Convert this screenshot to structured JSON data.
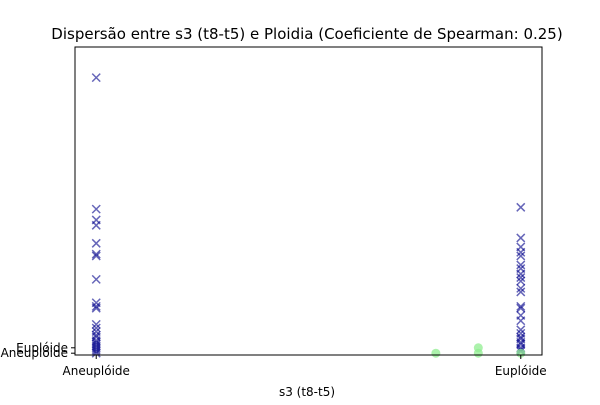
{
  "chart_data": {
    "type": "scatter",
    "title": "Dispersão entre s3 (t8-t5) e Ploidia (Coeficiente de Spearman: 0.25)",
    "xlabel": "s3 (t8-t5)",
    "ylabel": "",
    "x_tick_labels": [
      "Aneuplóide",
      "Euplóide"
    ],
    "y_tick_labels": [
      "Aneuplóide",
      "Euplóide"
    ],
    "xlim": [
      -0.05,
      1.05
    ],
    "ylim": [
      -0.1,
      17.0
    ],
    "grid": false,
    "legend": "none",
    "series": [
      {
        "marker": "x",
        "color": "#00008b",
        "points": [
          {
            "x": 0,
            "y": 15.3
          },
          {
            "x": 0,
            "y": 8.0
          },
          {
            "x": 0,
            "y": 7.4
          },
          {
            "x": 0,
            "y": 7.1
          },
          {
            "x": 0,
            "y": 6.1
          },
          {
            "x": 0,
            "y": 5.5
          },
          {
            "x": 0,
            "y": 5.4
          },
          {
            "x": 0,
            "y": 4.1
          },
          {
            "x": 0,
            "y": 2.8
          },
          {
            "x": 0,
            "y": 2.6
          },
          {
            "x": 0,
            "y": 2.5
          },
          {
            "x": 0,
            "y": 1.6
          },
          {
            "x": 0,
            "y": 1.4
          },
          {
            "x": 0,
            "y": 1.2
          },
          {
            "x": 0,
            "y": 1.0
          },
          {
            "x": 0,
            "y": 0.9
          },
          {
            "x": 0,
            "y": 0.7
          },
          {
            "x": 0,
            "y": 0.6
          },
          {
            "x": 0,
            "y": 0.5
          },
          {
            "x": 0,
            "y": 0.4
          },
          {
            "x": 0,
            "y": 0.3
          },
          {
            "x": 0,
            "y": 0.2
          },
          {
            "x": 0,
            "y": 0.1
          },
          {
            "x": 0,
            "y": 0.0
          },
          {
            "x": 1,
            "y": 8.1
          },
          {
            "x": 1,
            "y": 6.4
          },
          {
            "x": 1,
            "y": 5.9
          },
          {
            "x": 1,
            "y": 5.6
          },
          {
            "x": 1,
            "y": 5.4
          },
          {
            "x": 1,
            "y": 4.9
          },
          {
            "x": 1,
            "y": 4.7
          },
          {
            "x": 1,
            "y": 4.4
          },
          {
            "x": 1,
            "y": 4.2
          },
          {
            "x": 1,
            "y": 4.0
          },
          {
            "x": 1,
            "y": 3.6
          },
          {
            "x": 1,
            "y": 3.4
          },
          {
            "x": 1,
            "y": 2.6
          },
          {
            "x": 1,
            "y": 2.5
          },
          {
            "x": 1,
            "y": 2.1
          },
          {
            "x": 1,
            "y": 1.8
          },
          {
            "x": 1,
            "y": 1.3
          },
          {
            "x": 1,
            "y": 1.1
          },
          {
            "x": 1,
            "y": 0.9
          },
          {
            "x": 1,
            "y": 0.8
          },
          {
            "x": 1,
            "y": 0.6
          },
          {
            "x": 1,
            "y": 0.5
          },
          {
            "x": 1,
            "y": 0.3
          },
          {
            "x": 1,
            "y": 0.2
          },
          {
            "x": 1,
            "y": 0.1
          }
        ]
      },
      {
        "marker": "o",
        "color": "#90ee90",
        "points": [
          {
            "x": 0.8,
            "y": 0.0
          },
          {
            "x": 0.9,
            "y": 0.3
          },
          {
            "x": 0.9,
            "y": 0.0
          },
          {
            "x": 1.0,
            "y": 0.0
          }
        ]
      }
    ]
  }
}
